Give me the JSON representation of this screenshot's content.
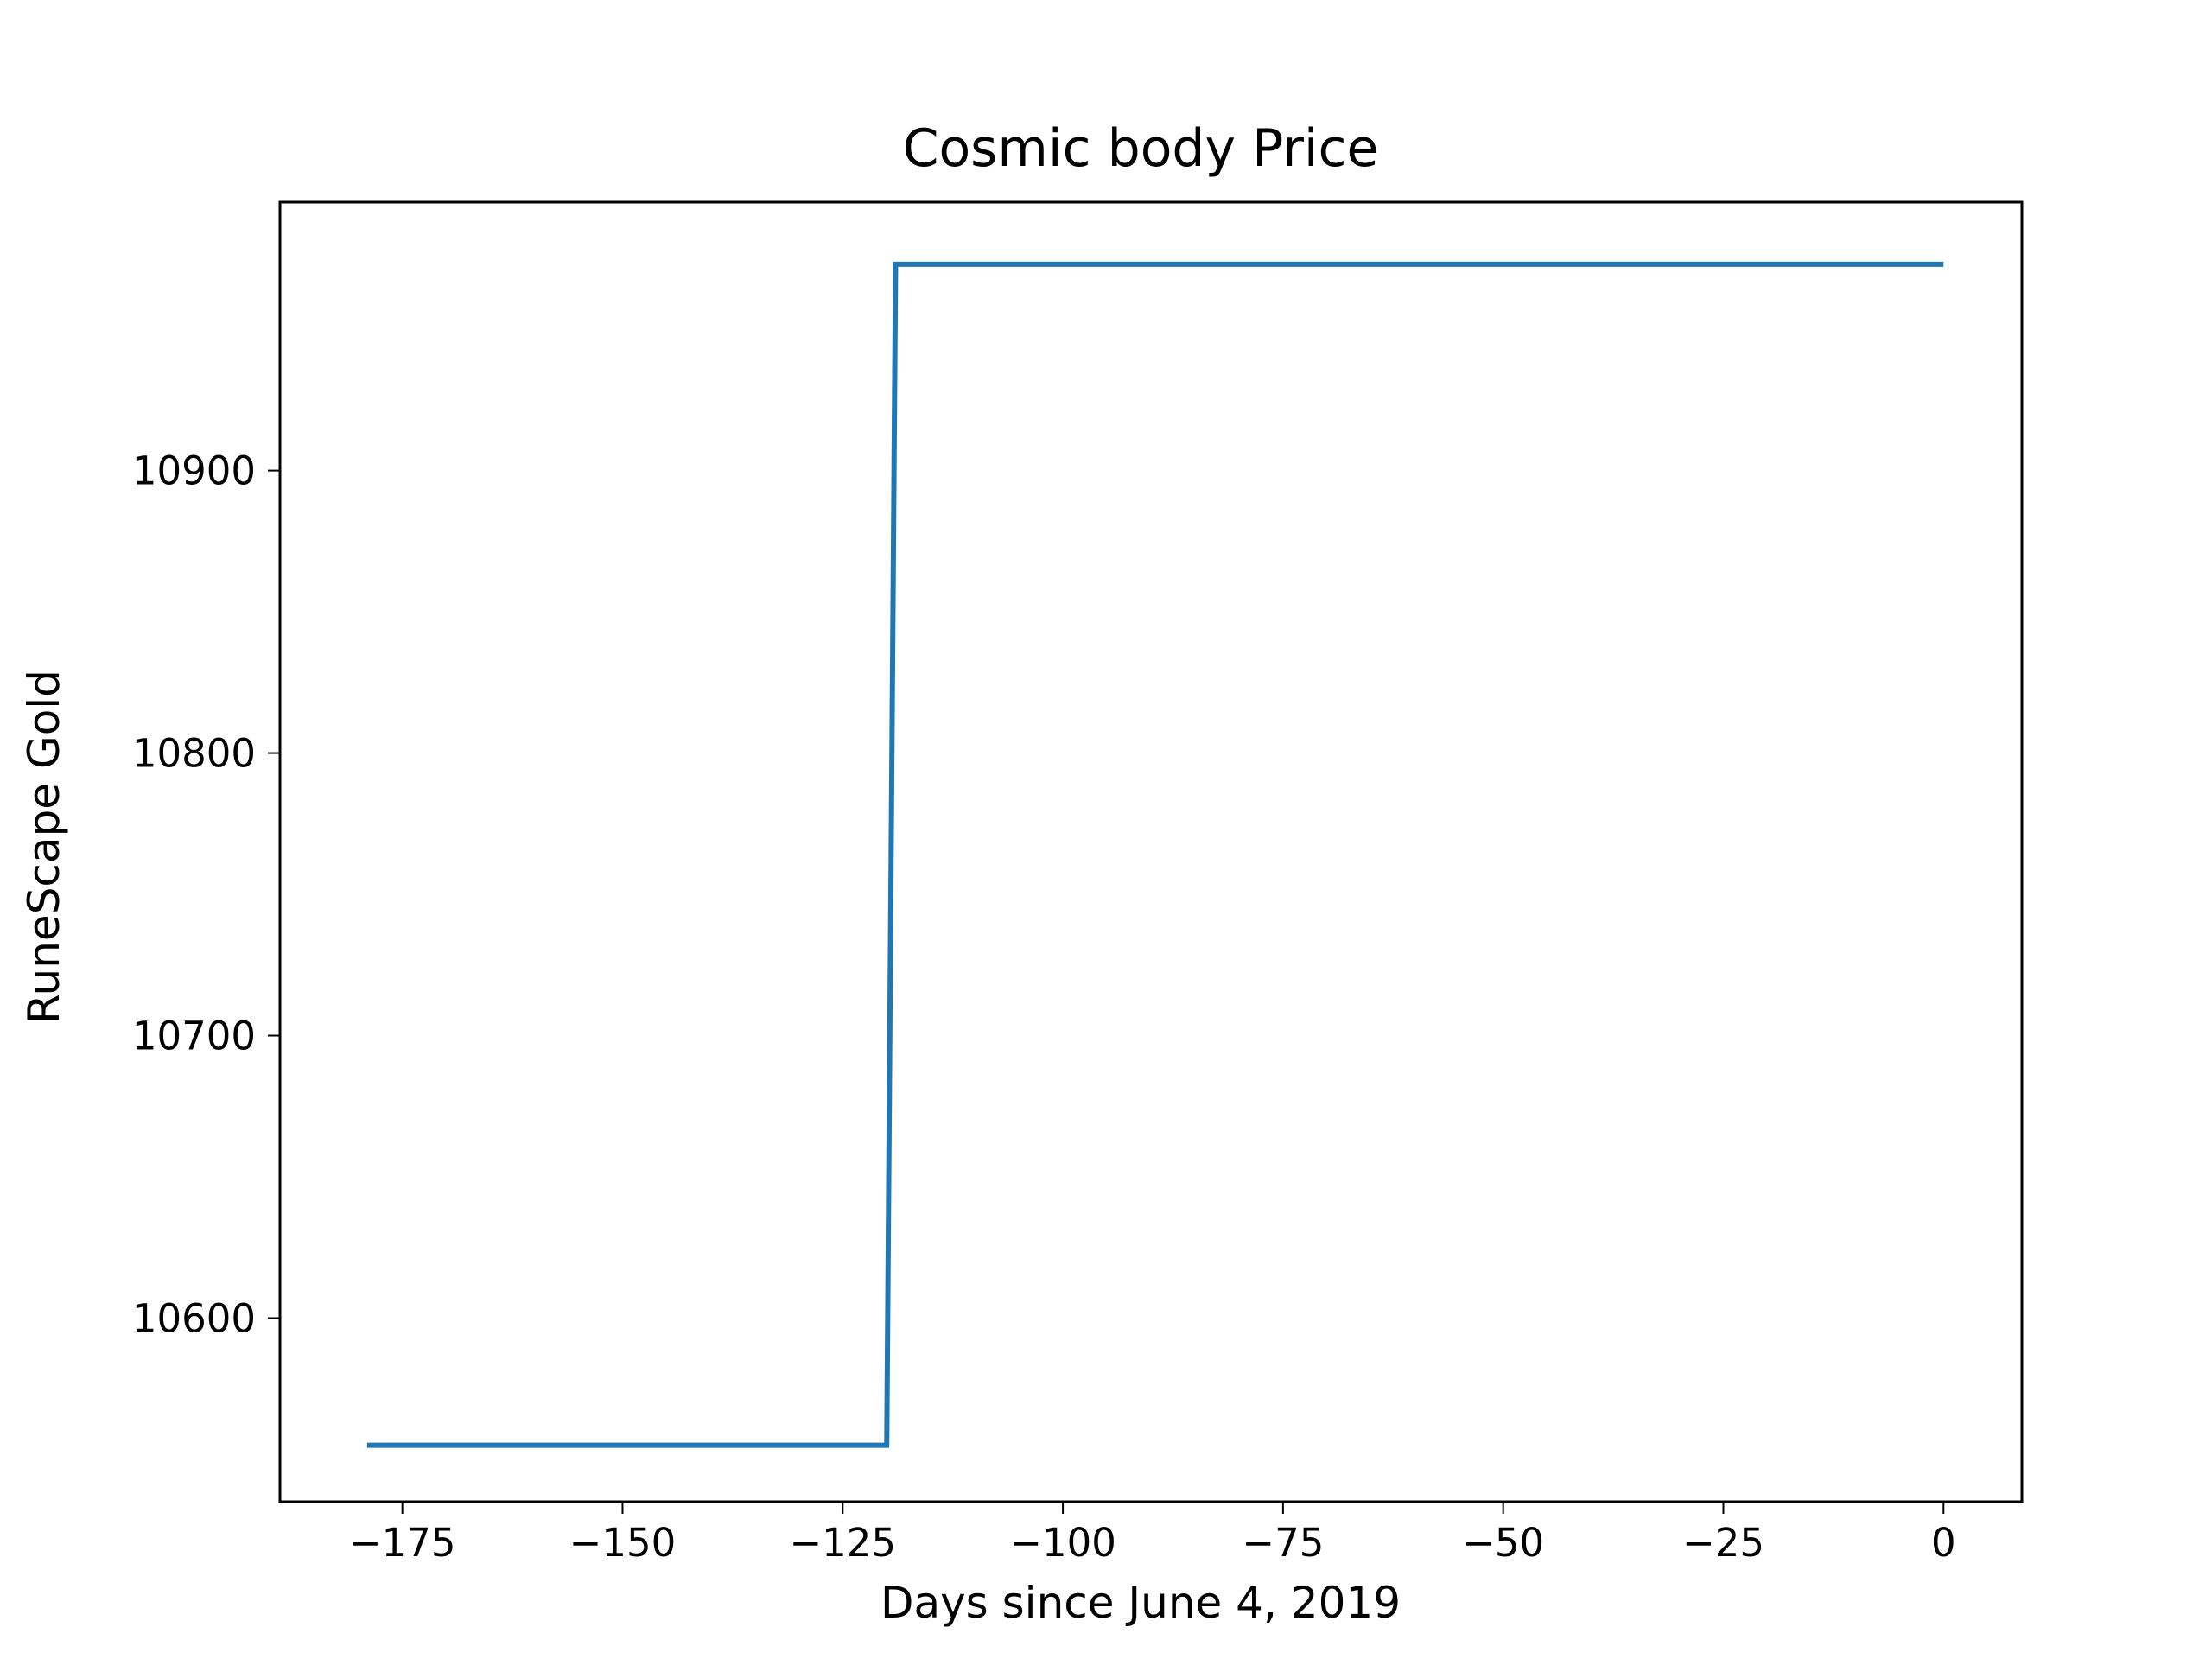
{
  "chart_data": {
    "type": "line",
    "title": "Cosmic body Price",
    "xlabel": "Days since June 4, 2019",
    "ylabel": "RuneScape Gold",
    "xlim": [
      -188.9,
      8.9
    ],
    "ylim": [
      10535,
      10995
    ],
    "xticks": [
      -175,
      -150,
      -125,
      -100,
      -75,
      -50,
      -25,
      0
    ],
    "xtick_labels": [
      "−175",
      "−150",
      "−125",
      "−100",
      "−75",
      "−50",
      "−25",
      "0"
    ],
    "yticks": [
      10600,
      10700,
      10800,
      10900
    ],
    "ytick_labels": [
      "10600",
      "10700",
      "10800",
      "10900"
    ],
    "grid": false,
    "series": [
      {
        "color": "#1f77b4",
        "points": [
          {
            "x": -179,
            "y": 10555
          },
          {
            "x": -120,
            "y": 10555
          },
          {
            "x": -119,
            "y": 10973
          },
          {
            "x": 0,
            "y": 10973
          }
        ]
      }
    ]
  }
}
